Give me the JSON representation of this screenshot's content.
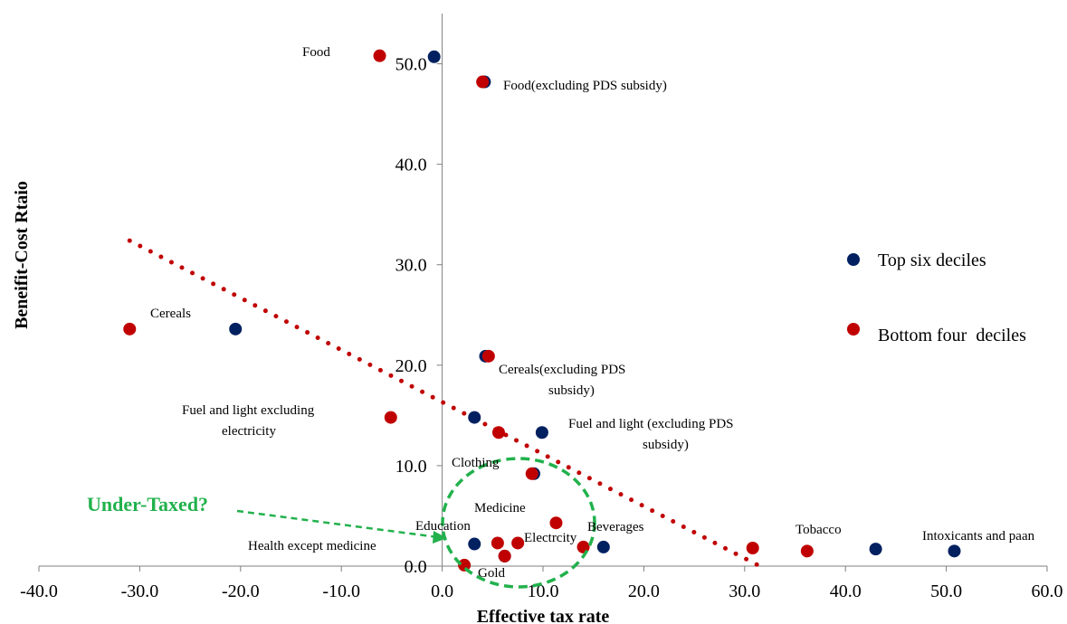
{
  "chart_data": {
    "type": "scatter",
    "xlabel": "Effective tax rate",
    "ylabel": "Beneifit-Cost Rtaio",
    "xlim": [
      -40,
      60
    ],
    "ylim": [
      0,
      55
    ],
    "x_ticks": [
      "-40.0",
      "-30.0",
      "-20.0",
      "-10.0",
      "0.0",
      "10.0",
      "20.0",
      "30.0",
      "40.0",
      "50.0",
      "60.0"
    ],
    "y_ticks": [
      "0.0",
      "10.0",
      "20.0",
      "30.0",
      "40.0",
      "50.0"
    ],
    "legend_position": "right",
    "series": [
      {
        "name": "Top six deciles",
        "color": "#002060",
        "points": [
          {
            "x": -0.8,
            "y": 50.7
          },
          {
            "x": 4.2,
            "y": 48.2
          },
          {
            "x": -20.5,
            "y": 23.6
          },
          {
            "x": 4.3,
            "y": 20.9
          },
          {
            "x": 3.2,
            "y": 14.8
          },
          {
            "x": 9.9,
            "y": 13.3
          },
          {
            "x": 9.1,
            "y": 9.2
          },
          {
            "x": 3.2,
            "y": 2.2
          },
          {
            "x": 6.2,
            "y": 1.0
          },
          {
            "x": 16.0,
            "y": 1.9
          },
          {
            "x": 43.0,
            "y": 1.7
          },
          {
            "x": 50.8,
            "y": 1.5
          }
        ]
      },
      {
        "name": "Bottom four  deciles",
        "color": "#c00000",
        "points": [
          {
            "x": -6.2,
            "y": 50.8
          },
          {
            "x": 4.0,
            "y": 48.2
          },
          {
            "x": -31.0,
            "y": 23.6
          },
          {
            "x": 4.6,
            "y": 20.9
          },
          {
            "x": -5.1,
            "y": 14.8
          },
          {
            "x": 5.6,
            "y": 13.3
          },
          {
            "x": 8.9,
            "y": 9.2
          },
          {
            "x": 11.3,
            "y": 4.3
          },
          {
            "x": 5.5,
            "y": 2.3
          },
          {
            "x": 7.5,
            "y": 2.3
          },
          {
            "x": 6.2,
            "y": 1.0
          },
          {
            "x": 2.2,
            "y": 0.1
          },
          {
            "x": 14.0,
            "y": 1.9
          },
          {
            "x": 30.8,
            "y": 1.8
          },
          {
            "x": 36.2,
            "y": 1.5
          }
        ]
      }
    ],
    "trendline": {
      "series": "Bottom four  deciles",
      "style": "dotted",
      "x_start": -31.0,
      "x_end": 31.5,
      "y_start": 32.4,
      "y_end": 0.0
    },
    "annotations": [
      "Food",
      "Food(excluding PDS subsidy)",
      "Cereals",
      "Cereals(excluding PDS",
      "subsidy)",
      "Fuel and light excluding",
      "electricity",
      "Fuel and light (excluding PDS",
      "subsidy)",
      "Clothing",
      "Medicine",
      "Education",
      "Beverages",
      "Electrcity",
      "Health except medicine",
      "Gold",
      "Tobacco",
      "Intoxicants and paan"
    ],
    "callout": "Under-Taxed?",
    "callout_color": "#22b14c"
  }
}
